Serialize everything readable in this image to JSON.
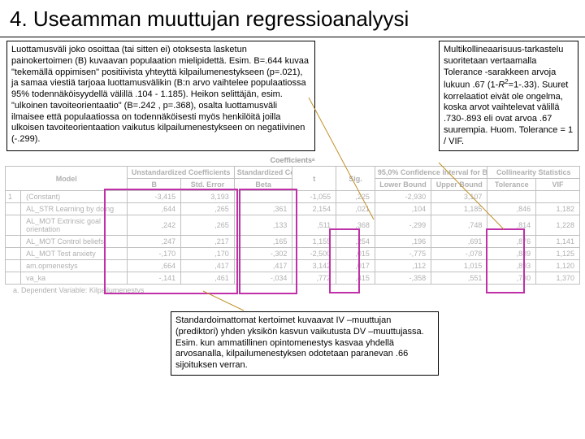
{
  "title": "4. Useamman muuttujan regressioanalyysi",
  "leftBox": "Luottamusväli joko osoittaa (tai sitten ei) otoksesta lasketun painokertoimen (B) kuvaavan populaation mielipidettä. Esim. B=.644 kuvaa \"tekemällä oppimisen\" positiivista yhteyttä kilpailumenestykseen (p=.021), ja samaa viestiä tarjoaa luottamusvälikin (B:n arvo vaihtelee populaatiossa 95% todennäköisyydellä välillä .104 - 1.185). Heikon selittäjän, esim. \"ulkoinen tavoiteorientaatio\" (B=.242 , p=.368), osalta luottamusväli ilmaisee että populaatiossa on todennäköisesti myös henkilöitä joilla ulkoisen tavoiteorientaation vaikutus kilpailumenestykseen on negatiivinen (-.299).",
  "rightBox_a": "Multikollineaarisuus-tarkastelu suoritetaan vertaamalla Tolerance -sarakkeen arvoja lukuun .67 (1-",
  "rightBox_r": "R",
  "rightBox_b": "=1-.33). Suuret korrelaatiot eivät ole ongelma, koska arvot vaihtelevat välillä .730-.893 eli ovat arvoa .67 suurempia. Huom. Tolerance = 1 / VIF.",
  "bottomBox": "Standardoimattomat kertoimet kuvaavat IV –muuttujan (prediktori) yhden yksikön kasvun vaikutusta DV –muuttujassa. Esim. kun ammatillinen opintomenestys kasvaa yhdellä arvosanalla, kilpailumenestyksen odotetaan paranevan .66 sijoituksen verran.",
  "table": {
    "caption": "Coefficientsᵃ",
    "groupHeaders": [
      "Model",
      "Unstandardized Coefficients",
      "Standardized Coefficients",
      "t",
      "Sig.",
      "95,0% Confidence Interval for B",
      "Collinearity Statistics"
    ],
    "subHeaders": [
      "",
      "B",
      "Std. Error",
      "Beta",
      "",
      "",
      "Lower Bound",
      "Upper Bound",
      "Tolerance",
      "VIF"
    ],
    "rows": [
      [
        "1",
        "(Constant)",
        "-3,415",
        "3,193",
        "",
        "-1,055",
        ",225",
        "-2,930",
        "3,107",
        "",
        ""
      ],
      [
        "",
        "AL_STR Learning by doing",
        ",644",
        ",265",
        ",361",
        "2,154",
        ",021",
        ",104",
        "1,185",
        ",846",
        "1,182"
      ],
      [
        "",
        "AL_MOT Extrinsic goal orientation",
        ",242",
        ",265",
        ",133",
        ",511",
        ",368",
        "-,299",
        ",748",
        ",814",
        "1,228"
      ],
      [
        "",
        "AL_MOT Control beliefs",
        ",247",
        ",217",
        ",165",
        "1,155",
        ",254",
        ",196",
        ",691",
        ",876",
        "1,141"
      ],
      [
        "",
        "AL_MOT Test anxiety",
        "-,170",
        ",170",
        "-,302",
        "-2,500",
        ",015",
        "-,775",
        "-,078",
        ",889",
        "1,125"
      ],
      [
        "",
        "am.opmenestys",
        ",664",
        ",417",
        ",417",
        "3,142",
        ",017",
        ",112",
        "1,015",
        ",893",
        "1,120"
      ],
      [
        "",
        "va_ka",
        "-,141",
        ",461",
        "-,034",
        ",772",
        ",415",
        "-,358",
        ",551",
        ",730",
        "1,370"
      ]
    ],
    "footnote": "a. Dependent Variable: Kilpailumenestys"
  }
}
